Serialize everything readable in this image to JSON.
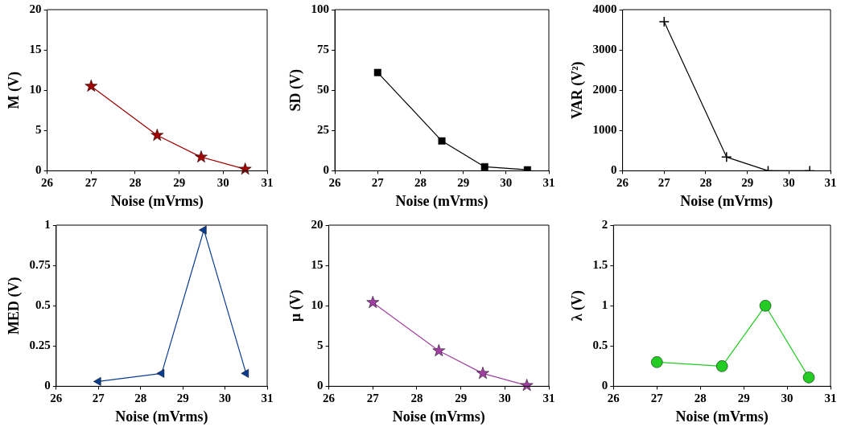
{
  "chart_data": [
    {
      "type": "line",
      "xlabel": "Noise (mVrms)",
      "ylabel": "M (V)",
      "x": [
        27,
        28.5,
        29.5,
        30.5
      ],
      "marker": "star",
      "xlim": [
        26,
        31
      ],
      "xticks": [
        26,
        27,
        28,
        29,
        30,
        31
      ],
      "ylim": [
        0,
        20
      ],
      "yticks": [
        0,
        5,
        10,
        15,
        20
      ],
      "series": [
        {
          "color": "#a00000",
          "values": [
            10.5,
            4.4,
            1.7,
            0.2
          ]
        }
      ]
    },
    {
      "type": "line",
      "xlabel": "Noise (mVrms)",
      "ylabel": "SD (V)",
      "x": [
        27,
        28.5,
        29.5,
        30.5
      ],
      "marker": "square",
      "xlim": [
        26,
        31
      ],
      "xticks": [
        26,
        27,
        28,
        29,
        30,
        31
      ],
      "ylim": [
        0,
        100
      ],
      "yticks": [
        0,
        25,
        50,
        75,
        100
      ],
      "series": [
        {
          "color": "#000000",
          "values": [
            61,
            18.5,
            2.5,
            0.6
          ]
        }
      ]
    },
    {
      "type": "line",
      "xlabel": "Noise (mVrms)",
      "ylabel": "VAR (V²)",
      "x": [
        27,
        28.5,
        29.5,
        30.5
      ],
      "marker": "cross",
      "xlim": [
        26,
        31
      ],
      "xticks": [
        26,
        27,
        28,
        29,
        30,
        31
      ],
      "ylim": [
        0,
        4000
      ],
      "yticks": [
        0,
        1000,
        2000,
        3000,
        4000
      ],
      "series": [
        {
          "color": "#000000",
          "values": [
            3700,
            340,
            0,
            0
          ]
        }
      ]
    },
    {
      "type": "line",
      "xlabel": "Noise (mVrms)",
      "ylabel": "MED (V)",
      "x": [
        27,
        28.5,
        29.5,
        30.5
      ],
      "marker": "triangle",
      "xlim": [
        26,
        31
      ],
      "xticks": [
        26,
        27,
        28,
        29,
        30,
        31
      ],
      "ylim": [
        0,
        1
      ],
      "yticks": [
        0,
        0.25,
        0.5,
        0.75,
        1
      ],
      "series": [
        {
          "color": "#0b3d91",
          "values": [
            0.03,
            0.08,
            0.97,
            0.08
          ]
        }
      ]
    },
    {
      "type": "line",
      "xlabel": "Noise (mVrms)",
      "ylabel": "μ (V)",
      "x": [
        27,
        28.5,
        29.5,
        30.5
      ],
      "marker": "star",
      "xlim": [
        26,
        31
      ],
      "xticks": [
        26,
        27,
        28,
        29,
        30,
        31
      ],
      "ylim": [
        0,
        20
      ],
      "yticks": [
        0,
        5,
        10,
        15,
        20
      ],
      "series": [
        {
          "color": "#a040a0",
          "values": [
            10.4,
            4.4,
            1.6,
            0.1
          ]
        }
      ]
    },
    {
      "type": "line",
      "xlabel": "Noise (mVrms)",
      "ylabel": "λ (V)",
      "x": [
        27,
        28.5,
        29.5,
        30.5
      ],
      "marker": "circle",
      "xlim": [
        26,
        31
      ],
      "xticks": [
        26,
        27,
        28,
        29,
        30,
        31
      ],
      "ylim": [
        0,
        2
      ],
      "yticks": [
        0,
        0.5,
        1,
        1.5,
        2
      ],
      "series": [
        {
          "color": "#22cc22",
          "values": [
            0.3,
            0.25,
            1.0,
            0.11
          ]
        }
      ]
    }
  ]
}
